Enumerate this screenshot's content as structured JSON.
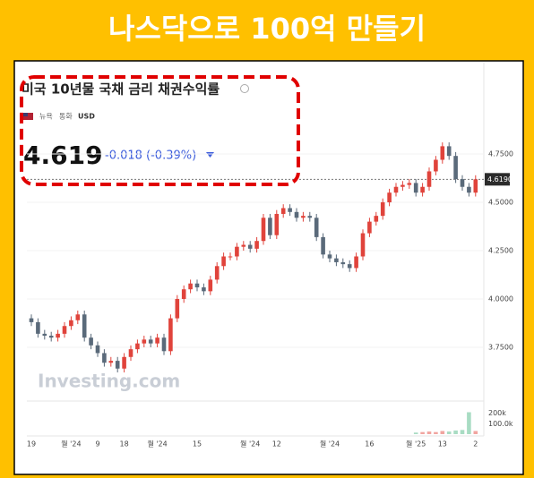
{
  "banner": {
    "title": "나스닥으로 100억 만들기"
  },
  "chart_data": {
    "type": "candlestick",
    "title": "미국 10년물 국채 금리 채권수익률",
    "exchange": "뉴욕",
    "currency_label": "통화",
    "currency": "USD",
    "price": "4.619",
    "change": "-0.018 (-0.39%)",
    "watermark": "Investing.com",
    "categories": [
      "19",
      null,
      null,
      null,
      null,
      null,
      "월 '24",
      null,
      null,
      null,
      "9",
      null,
      null,
      null,
      "18",
      null,
      null,
      null,
      null,
      "월 '24",
      null,
      null,
      null,
      null,
      null,
      "15",
      null,
      null,
      null,
      null,
      null,
      null,
      null,
      "월 '24",
      null,
      null,
      null,
      "12",
      null,
      null,
      null,
      null,
      null,
      null,
      null,
      "월 '24",
      null,
      null,
      null,
      null,
      null,
      "16",
      null,
      null,
      null,
      null,
      null,
      null,
      "월 '25",
      null,
      null,
      null,
      "13",
      null,
      null,
      null,
      null,
      "2"
    ],
    "open": [
      3.9,
      3.88,
      3.82,
      3.81,
      3.8,
      3.82,
      3.86,
      3.89,
      3.92,
      3.8,
      3.76,
      3.72,
      3.67,
      3.68,
      3.64,
      3.7,
      3.74,
      3.77,
      3.79,
      3.77,
      3.8,
      3.73,
      3.9,
      4.0,
      4.05,
      4.08,
      4.06,
      4.04,
      4.1,
      4.17,
      4.22,
      4.22,
      4.27,
      4.28,
      4.26,
      4.3,
      4.42,
      4.33,
      4.44,
      4.47,
      4.45,
      4.42,
      4.43,
      4.42,
      4.32,
      4.23,
      4.21,
      4.19,
      4.18,
      4.16,
      4.22,
      4.34,
      4.4,
      4.43,
      4.5,
      4.55,
      4.58,
      4.59,
      4.6,
      4.55,
      4.58,
      4.66,
      4.72,
      4.79,
      4.74,
      4.62,
      4.58,
      4.55
    ],
    "high": [
      3.92,
      3.9,
      3.84,
      3.83,
      3.84,
      3.88,
      3.91,
      3.94,
      3.94,
      3.82,
      3.78,
      3.74,
      3.7,
      3.7,
      3.72,
      3.76,
      3.79,
      3.81,
      3.81,
      3.82,
      3.82,
      3.92,
      4.02,
      4.07,
      4.1,
      4.1,
      4.08,
      4.12,
      4.19,
      4.24,
      4.24,
      4.29,
      4.3,
      4.3,
      4.32,
      4.44,
      4.44,
      4.46,
      4.49,
      4.49,
      4.47,
      4.45,
      4.45,
      4.44,
      4.34,
      4.25,
      4.23,
      4.21,
      4.2,
      4.24,
      4.36,
      4.42,
      4.45,
      4.52,
      4.57,
      4.6,
      4.61,
      4.62,
      4.62,
      4.6,
      4.68,
      4.74,
      4.81,
      4.81,
      4.76,
      4.64,
      4.6,
      4.64
    ],
    "low": [
      3.86,
      3.8,
      3.79,
      3.78,
      3.78,
      3.8,
      3.84,
      3.87,
      3.78,
      3.74,
      3.7,
      3.65,
      3.65,
      3.62,
      3.62,
      3.68,
      3.72,
      3.75,
      3.75,
      3.75,
      3.71,
      3.71,
      3.88,
      3.98,
      4.03,
      4.04,
      4.02,
      4.02,
      4.08,
      4.15,
      4.2,
      4.2,
      4.25,
      4.24,
      4.24,
      4.28,
      4.31,
      4.31,
      4.42,
      4.43,
      4.4,
      4.4,
      4.4,
      4.3,
      4.21,
      4.19,
      4.17,
      4.16,
      4.14,
      4.14,
      4.2,
      4.32,
      4.38,
      4.41,
      4.48,
      4.53,
      4.56,
      4.57,
      4.53,
      4.53,
      4.56,
      4.64,
      4.7,
      4.72,
      4.6,
      4.56,
      4.53,
      4.53
    ],
    "close": [
      3.88,
      3.82,
      3.81,
      3.8,
      3.82,
      3.86,
      3.89,
      3.92,
      3.8,
      3.76,
      3.72,
      3.67,
      3.68,
      3.64,
      3.7,
      3.74,
      3.77,
      3.79,
      3.77,
      3.8,
      3.73,
      3.9,
      4.0,
      4.05,
      4.08,
      4.06,
      4.04,
      4.1,
      4.17,
      4.22,
      4.22,
      4.27,
      4.28,
      4.26,
      4.3,
      4.42,
      4.33,
      4.44,
      4.47,
      4.45,
      4.42,
      4.43,
      4.42,
      4.32,
      4.23,
      4.21,
      4.19,
      4.18,
      4.16,
      4.22,
      4.34,
      4.4,
      4.43,
      4.5,
      4.55,
      4.58,
      4.59,
      4.6,
      4.55,
      4.58,
      4.66,
      4.72,
      4.79,
      4.74,
      4.62,
      4.58,
      4.55,
      4.619
    ],
    "volume": [
      null,
      null,
      null,
      null,
      null,
      null,
      null,
      null,
      null,
      null,
      null,
      null,
      null,
      null,
      null,
      null,
      null,
      null,
      null,
      null,
      null,
      null,
      null,
      null,
      null,
      null,
      null,
      null,
      null,
      null,
      null,
      null,
      null,
      null,
      null,
      null,
      null,
      null,
      null,
      null,
      null,
      null,
      null,
      null,
      null,
      null,
      null,
      null,
      null,
      null,
      null,
      null,
      null,
      null,
      null,
      null,
      null,
      null,
      15000,
      20000,
      25000,
      20000,
      30000,
      25000,
      35000,
      40000,
      210000,
      30000
    ],
    "up_color": "#e0433b",
    "down_color": "#5a6a7a",
    "ylim": [
      3.486,
      5.153
    ],
    "yticks": [
      {
        "value": 3.75,
        "label": "3.7500"
      },
      {
        "value": 4.0,
        "label": "4.0000"
      },
      {
        "value": 4.25,
        "label": "4.2500"
      },
      {
        "value": 4.5,
        "label": "4.5000"
      },
      {
        "value": 4.75,
        "label": "4.7500"
      }
    ],
    "last_price": {
      "value": 4.619,
      "label": "4.6190"
    },
    "y2lim": [
      0,
      300000
    ],
    "y2ticks": [
      {
        "value": 200000,
        "label": "200k"
      },
      {
        "value": 100000,
        "label": "100.0k"
      }
    ]
  }
}
